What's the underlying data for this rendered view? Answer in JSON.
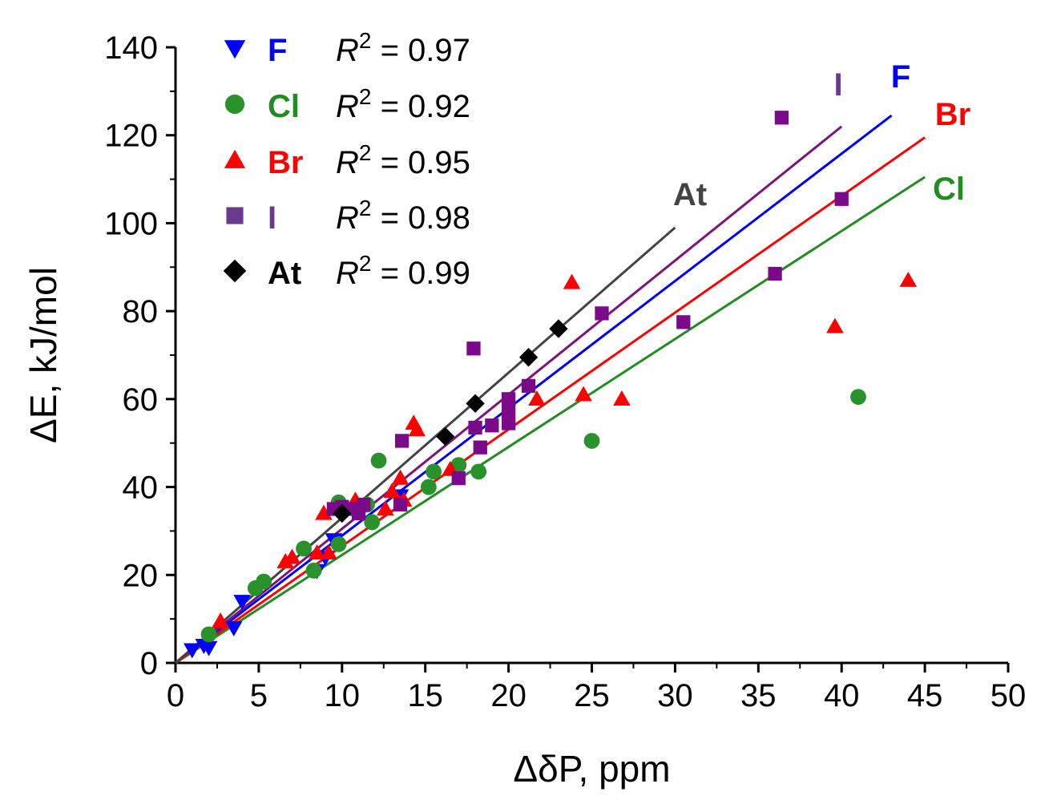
{
  "chart_data": {
    "type": "scatter",
    "xlabel": "ΔδP, ppm",
    "ylabel": "ΔE, kJ/mol",
    "xlim": [
      0,
      50
    ],
    "ylim": [
      0,
      140
    ],
    "xticks": [
      0,
      5,
      10,
      15,
      20,
      25,
      30,
      35,
      40,
      45,
      50
    ],
    "yticks": [
      0,
      20,
      40,
      60,
      80,
      100,
      120,
      140
    ],
    "legend_position": "top-left",
    "series": [
      {
        "name": "F",
        "marker": "triangle-down",
        "color": "#0000ff",
        "r2_label": "R",
        "r2_sup": "2",
        "r2_value": " = 0.97",
        "fit": {
          "x": [
            0,
            43
          ],
          "y": [
            0,
            124.5
          ]
        },
        "line_label": "F",
        "points": [
          [
            1,
            3
          ],
          [
            1.7,
            4
          ],
          [
            2,
            3.5
          ],
          [
            3.5,
            8
          ],
          [
            4,
            14
          ],
          [
            8.5,
            21
          ],
          [
            9,
            24
          ],
          [
            9.5,
            28
          ],
          [
            13.5,
            38
          ]
        ]
      },
      {
        "name": "Cl",
        "marker": "circle",
        "color": "#2a922a",
        "r2_label": "R",
        "r2_sup": "2",
        "r2_value": " = 0.92",
        "fit": {
          "x": [
            0,
            45
          ],
          "y": [
            0,
            110.5
          ]
        },
        "line_label": "Cl",
        "points": [
          [
            2,
            6.5
          ],
          [
            4.8,
            17
          ],
          [
            5.3,
            18.5
          ],
          [
            7.7,
            26
          ],
          [
            8.3,
            21
          ],
          [
            9.8,
            36.5
          ],
          [
            9.8,
            27
          ],
          [
            11.5,
            36
          ],
          [
            11.8,
            32
          ],
          [
            12.2,
            46
          ],
          [
            15.2,
            40
          ],
          [
            15.5,
            43.5
          ],
          [
            17,
            45
          ],
          [
            18.2,
            43.5
          ],
          [
            25,
            50.5
          ],
          [
            41,
            60.5
          ]
        ]
      },
      {
        "name": "Br",
        "marker": "triangle-up",
        "color": "#ff0000",
        "r2_label": "R",
        "r2_sup": "2",
        "r2_value": " = 0.95",
        "fit": {
          "x": [
            0,
            45
          ],
          "y": [
            0,
            119.5
          ]
        },
        "line_label": "Br",
        "points": [
          [
            2.7,
            9.5
          ],
          [
            6.6,
            23
          ],
          [
            7,
            24
          ],
          [
            8.5,
            25
          ],
          [
            8.9,
            34
          ],
          [
            9.2,
            25
          ],
          [
            10.8,
            37
          ],
          [
            12.6,
            35
          ],
          [
            13,
            39
          ],
          [
            13.5,
            42
          ],
          [
            13.7,
            37
          ],
          [
            14.3,
            54.5
          ],
          [
            14.5,
            53
          ],
          [
            16.5,
            44
          ],
          [
            21.7,
            60
          ],
          [
            23.8,
            86.5
          ],
          [
            24.5,
            61
          ],
          [
            26.8,
            60
          ],
          [
            39.6,
            76.5
          ],
          [
            44,
            87
          ]
        ]
      },
      {
        "name": "I",
        "marker": "square",
        "color": "#7a0a8a",
        "r2_label": "R",
        "r2_sup": "2",
        "r2_value": " = 0.98",
        "fit": {
          "x": [
            0,
            40
          ],
          "y": [
            0,
            122
          ]
        },
        "line_label": "I",
        "points": [
          [
            9.5,
            35
          ],
          [
            10,
            35.5
          ],
          [
            10.5,
            35
          ],
          [
            11,
            34
          ],
          [
            11.3,
            36
          ],
          [
            13.5,
            36
          ],
          [
            13.6,
            50.5
          ],
          [
            17,
            42
          ],
          [
            17.9,
            71.5
          ],
          [
            18,
            53.5
          ],
          [
            18.3,
            49
          ],
          [
            19,
            54
          ],
          [
            20,
            54.5
          ],
          [
            20,
            57.5
          ],
          [
            20,
            60
          ],
          [
            21.2,
            63
          ],
          [
            25.6,
            79.5
          ],
          [
            30.5,
            77.5
          ],
          [
            36,
            88.5
          ],
          [
            36.4,
            124
          ],
          [
            40,
            105.5
          ]
        ]
      },
      {
        "name": "At",
        "marker": "diamond",
        "color": "#000000",
        "r2_label": "R",
        "r2_sup": "2",
        "r2_value": " = 0.99",
        "fit": {
          "x": [
            0,
            30
          ],
          "y": [
            0,
            99
          ]
        },
        "line_label": "At",
        "points": [
          [
            10,
            34
          ],
          [
            16.2,
            51.5
          ],
          [
            18,
            59
          ],
          [
            21.2,
            69.5
          ],
          [
            23,
            76
          ]
        ]
      }
    ]
  },
  "colors": {
    "F_fit": "#0000ff",
    "Cl_fit": "#228b22",
    "Br_fit": "#ff0000",
    "I_fit": "#7b147b",
    "At_fit": "#444444",
    "I_legend_marker": "#6a3a8e"
  }
}
